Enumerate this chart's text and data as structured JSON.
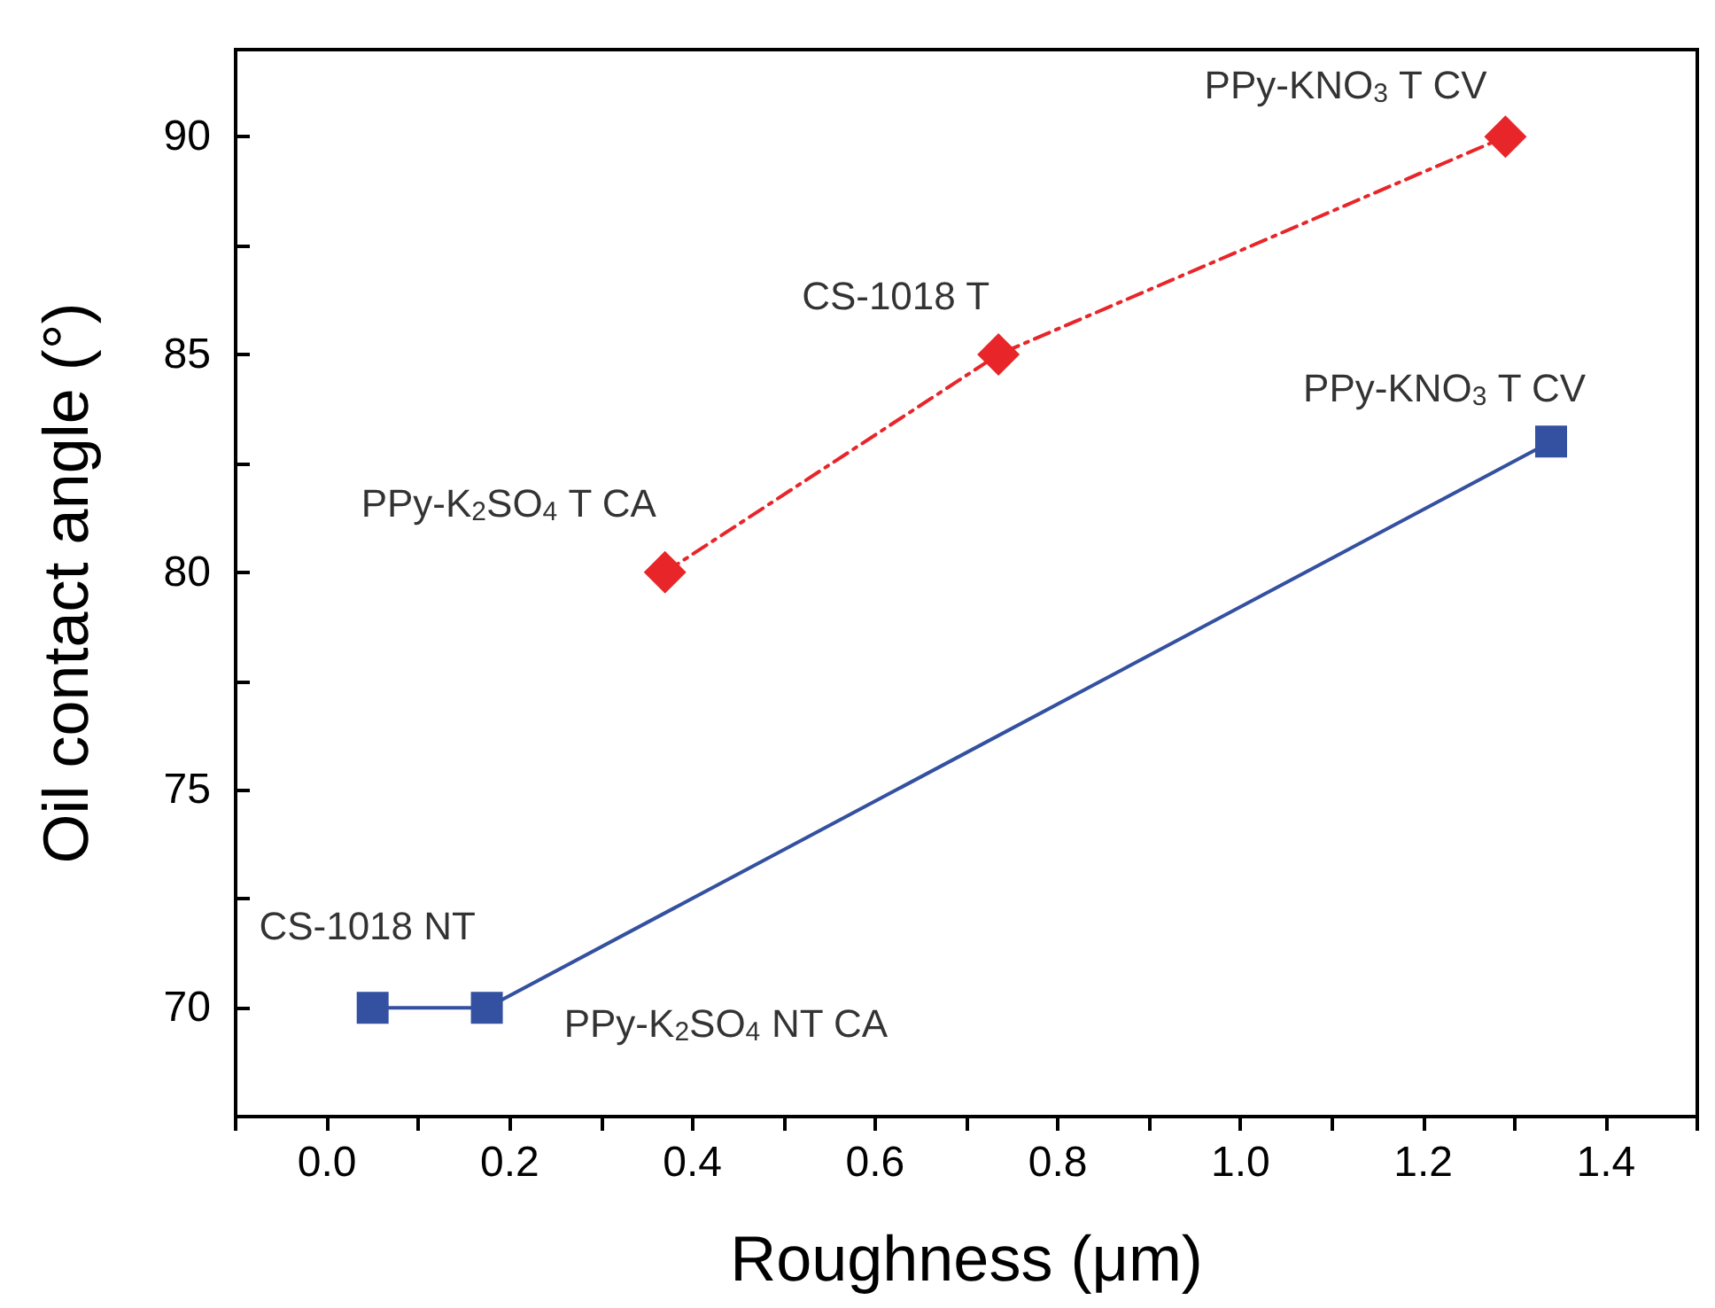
{
  "chart_data": {
    "type": "line",
    "xlabel": "Roughness (μm)",
    "ylabel": "Oil contact angle (°)",
    "xlim": [
      -0.1,
      1.5
    ],
    "ylim": [
      67.5,
      92
    ],
    "xticks": [
      {
        "value": -0.1,
        "label": null
      },
      {
        "value": 0,
        "label": "0.0"
      },
      {
        "value": 0.1,
        "label": null
      },
      {
        "value": 0.2,
        "label": "0.2"
      },
      {
        "value": 0.3,
        "label": null
      },
      {
        "value": 0.4,
        "label": "0.4"
      },
      {
        "value": 0.5,
        "label": null
      },
      {
        "value": 0.6,
        "label": "0.6"
      },
      {
        "value": 0.7,
        "label": null
      },
      {
        "value": 0.8,
        "label": "0.8"
      },
      {
        "value": 0.9,
        "label": null
      },
      {
        "value": 1,
        "label": "1.0"
      },
      {
        "value": 1.1,
        "label": null
      },
      {
        "value": 1.2,
        "label": "1.2"
      },
      {
        "value": 1.3,
        "label": null
      },
      {
        "value": 1.4,
        "label": "1.4"
      },
      {
        "value": 1.5,
        "label": null
      }
    ],
    "yticks": [
      {
        "value": 67.5,
        "label": null
      },
      70,
      {
        "value": 72.5,
        "label": null
      },
      75,
      {
        "value": 77.5,
        "label": null
      },
      80,
      {
        "value": 82.5,
        "label": null
      },
      85,
      {
        "value": 87.5,
        "label": null
      },
      90
    ],
    "grid": false,
    "series": [
      {
        "color": "#e8262a",
        "x": [
          0.37,
          0.735,
          1.29
        ],
        "values": [
          80,
          85,
          90
        ],
        "marker": "diamond",
        "line_style": "dashed"
      },
      {
        "color": "#3450a0",
        "x": [
          0.05,
          0.175,
          1.34
        ],
        "values": [
          70,
          70,
          83
        ],
        "marker": "square",
        "line_style": "solid"
      }
    ],
    "annotations": [
      {
        "text": "PPy-K$_{2}$SO$_{4}$ T CA",
        "x": 0.37,
        "y": 80
      },
      {
        "text": "CS-1018 T",
        "x": 0.735,
        "y": 85
      },
      {
        "text": "PPy-KNO$_{3}$ T CV",
        "x": 1.29,
        "y": 90
      },
      {
        "text": "CS-1018 NT",
        "x": 0.05,
        "y": 70
      },
      {
        "text": "PPy-K$_{2}$SO$_{4}$ NT CA",
        "x": 0.175,
        "y": 70
      },
      {
        "text": "PPy-KNO$_{3}$ T CV",
        "x": 1.34,
        "y": 83
      }
    ]
  }
}
